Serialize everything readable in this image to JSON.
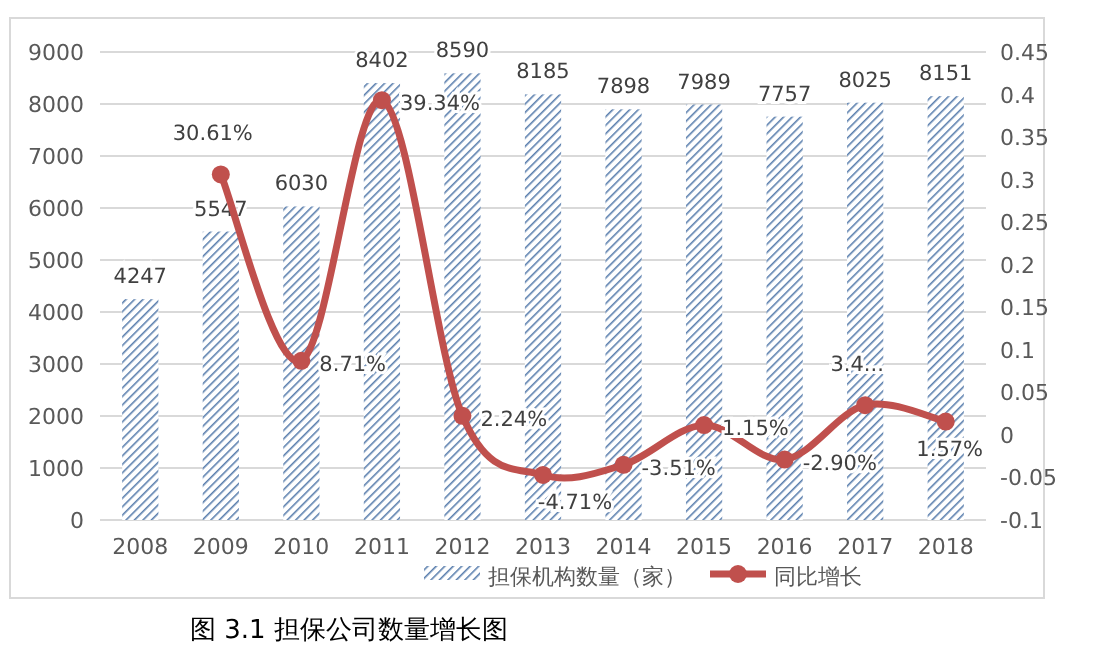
{
  "chart_data": {
    "type": "bar",
    "title": "图 3.1 担保公司数量增长图",
    "categories": [
      "2008",
      "2009",
      "2010",
      "2011",
      "2012",
      "2013",
      "2014",
      "2015",
      "2016",
      "2017",
      "2018"
    ],
    "series": [
      {
        "name": "担保机构数量（家）",
        "color": "#5b7fae",
        "values": [
          4247,
          5547,
          6030,
          8402,
          8590,
          8185,
          7898,
          7989,
          7757,
          8025,
          8151
        ]
      },
      {
        "name": "同比增长",
        "type": "line",
        "axis": "y2",
        "color": "#c0504d",
        "marker": "circle",
        "values": [
          null,
          0.3061,
          0.0871,
          0.3934,
          0.0224,
          -0.0471,
          -0.0351,
          0.0115,
          -0.029,
          0.035,
          0.0157
        ],
        "value_labels": [
          null,
          "30.61%",
          "8.71%",
          "39.34%",
          "2.24%",
          "-4.71%",
          "-3.51%",
          "1.15%",
          "-2.90%",
          "3.4...",
          "1.57%"
        ]
      }
    ],
    "data_labels": true,
    "ylim": [
      0,
      9000
    ],
    "yticks": [
      0,
      1000,
      2000,
      3000,
      4000,
      5000,
      6000,
      7000,
      8000,
      9000
    ],
    "y2lim": [
      -0.1,
      0.45
    ],
    "y2ticks": [
      -0.1,
      -0.05,
      0,
      0.05,
      0.1,
      0.15,
      0.2,
      0.25,
      0.3,
      0.35,
      0.4,
      0.45
    ],
    "grid": "y",
    "legend": "bottom"
  }
}
